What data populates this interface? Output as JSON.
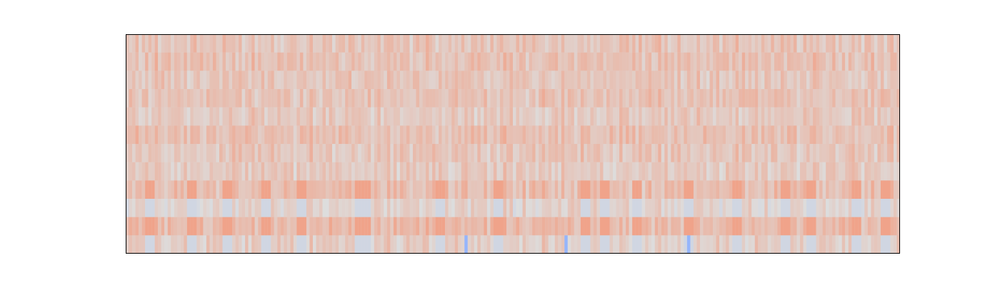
{
  "chart_data": {
    "type": "heatmap",
    "title": "",
    "xlabel": "",
    "ylabel": "",
    "axes_ticks_visible": false,
    "colormap": "coolwarm",
    "colormap_stops": [
      "#3b4cc0",
      "#8db0fe",
      "#dddddd",
      "#f4987a",
      "#b40426"
    ],
    "value_range": [
      -1,
      1
    ],
    "grid": false,
    "legend": "none",
    "n_rows": 12,
    "n_cols": 240,
    "row_values": [
      0.18,
      0.2,
      0.16,
      0.19,
      0.15,
      0.21,
      0.17,
      0.14,
      0.22,
      0.08,
      0.24,
      0.12
    ],
    "column_pattern_values": [
      0.1,
      0.22,
      0.16,
      0.28,
      0.08,
      0.18,
      0.25,
      0.12,
      0.2,
      0.3,
      0.14,
      0.24
    ],
    "notable_column_fractions": [
      0.03,
      0.085,
      0.13,
      0.18,
      0.227,
      0.3,
      0.31,
      0.405,
      0.48,
      0.595,
      0.62,
      0.66,
      0.73,
      0.79,
      0.855,
      0.888,
      0.945,
      0.985
    ],
    "low_value_column_fractions": [
      0.44,
      0.57,
      0.73
    ],
    "palette": {
      "background": "#ffffff",
      "axis_frame": "#000000"
    }
  }
}
